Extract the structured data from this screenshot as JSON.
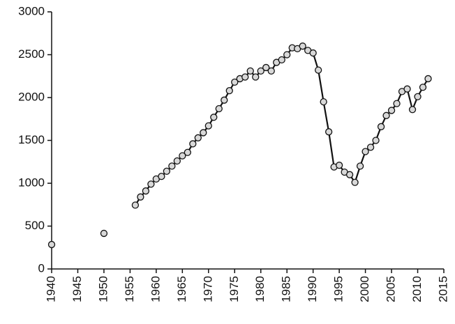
{
  "chart_data": {
    "type": "line",
    "x": [
      1940,
      1941,
      1942,
      1943,
      1944,
      1945,
      1946,
      1947,
      1948,
      1949,
      1950,
      1951,
      1952,
      1953,
      1954,
      1955,
      1956,
      1957,
      1958,
      1959,
      1960,
      1961,
      1962,
      1963,
      1964,
      1965,
      1966,
      1967,
      1968,
      1969,
      1970,
      1971,
      1972,
      1973,
      1974,
      1975,
      1976,
      1977,
      1978,
      1979,
      1980,
      1981,
      1982,
      1983,
      1984,
      1985,
      1986,
      1987,
      1988,
      1989,
      1990,
      1991,
      1992,
      1993,
      1994,
      1995,
      1996,
      1997,
      1998,
      1999,
      2000,
      2001,
      2002,
      2003,
      2004,
      2005,
      2006,
      2007,
      2008,
      2009,
      2010,
      2011,
      2012
    ],
    "values": [
      285,
      null,
      null,
      null,
      null,
      null,
      null,
      null,
      null,
      null,
      415,
      null,
      null,
      null,
      null,
      null,
      745,
      840,
      910,
      990,
      1050,
      1080,
      1140,
      1200,
      1260,
      1320,
      1360,
      1460,
      1530,
      1590,
      1670,
      1770,
      1870,
      1970,
      2080,
      2180,
      2220,
      2240,
      2310,
      2240,
      2310,
      2350,
      2310,
      2410,
      2440,
      2500,
      2580,
      2570,
      2600,
      2550,
      2520,
      2320,
      1950,
      1600,
      1190,
      1210,
      1130,
      1100,
      1010,
      1200,
      1370,
      1420,
      1500,
      1660,
      1790,
      1850,
      1930,
      2070,
      2100,
      1860,
      2010,
      2120,
      2220
    ],
    "color": "#111111",
    "marker_fill": "#d8d8d8",
    "xlim": [
      1940,
      2015
    ],
    "xticks": [
      1940,
      1945,
      1950,
      1955,
      1960,
      1965,
      1970,
      1975,
      1980,
      1985,
      1990,
      1995,
      2000,
      2005,
      2010,
      2015
    ],
    "ylim": [
      0,
      3000
    ],
    "yticks": [
      0,
      500,
      1000,
      1500,
      2000,
      2500,
      3000
    ],
    "grid": false
  }
}
